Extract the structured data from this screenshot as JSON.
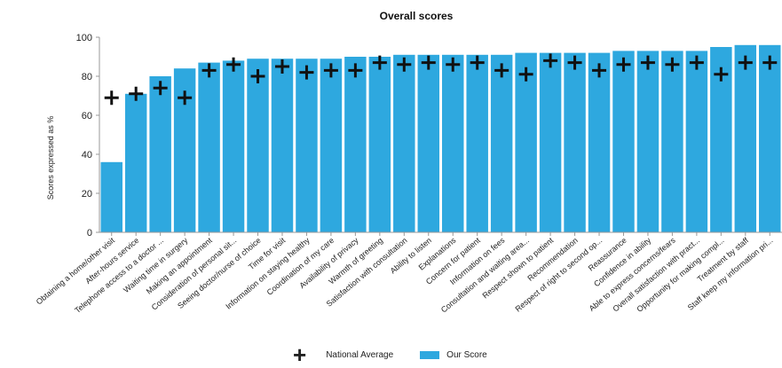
{
  "chart_data": {
    "type": "bar",
    "title": "Overall scores",
    "xlabel": "",
    "ylabel": "Scores expressed as %",
    "ylim": [
      0,
      100
    ],
    "yticks": [
      0,
      20,
      40,
      60,
      80,
      100
    ],
    "grid": false,
    "legend_position": "bottom",
    "categories": [
      "Obtaining a home/other visit",
      "After-hours service",
      "Telephone access to a doctor ...",
      "Waiting time in surgery",
      "Making an appointment",
      "Consideration of personal sit...",
      "Seeing doctor/nurse of choice",
      "Time for visit",
      "Information on staying healthy",
      "Coordination of my care",
      "Availability of privacy",
      "Warmth of greeting",
      "Satisfaction with consultation",
      "Ability to listen",
      "Explanations",
      "Concern for patient",
      "Information on fees",
      "Consultation and waiting area...",
      "Respect shown to patient",
      "Recommendation",
      "Respect of right to second op...",
      "Reassurance",
      "Confidence in ability",
      "Able to express concerns/fears",
      "Overall satisfaction with pract...",
      "Opportunity for making compl...",
      "Treatment by staff",
      "Staff keep my information pri..."
    ],
    "series": [
      {
        "name": "Our Score",
        "color": "#2ea8df",
        "values": [
          36,
          71,
          80,
          84,
          87,
          88,
          89,
          89,
          89,
          89,
          90,
          90,
          91,
          91,
          91,
          91,
          91,
          92,
          92,
          92,
          92,
          93,
          93,
          93,
          93,
          95,
          96,
          96
        ]
      },
      {
        "name": "National Average",
        "marker": "plus",
        "color": "#111111",
        "values": [
          69,
          71,
          74,
          69,
          83,
          86,
          80,
          85,
          82,
          83,
          83,
          87,
          86,
          87,
          86,
          87,
          83,
          81,
          88,
          87,
          83,
          86,
          87,
          86,
          87,
          81,
          87,
          87
        ]
      }
    ]
  }
}
